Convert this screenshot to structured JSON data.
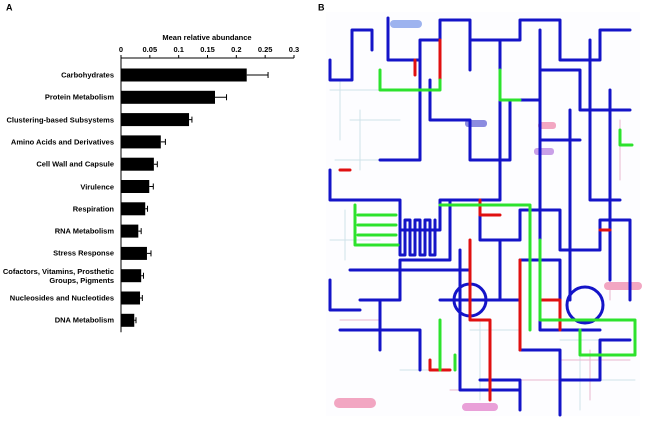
{
  "panels": {
    "a": "A",
    "b": "B"
  },
  "chart_data": {
    "type": "bar",
    "orientation": "horizontal",
    "x_label": "Mean relative abundance",
    "categories": [
      "Carbohydrates",
      "Protein Metabolism",
      "Clustering-based Subsystems",
      "Amino Acids and Derivatives",
      "Cell Wall and Capsule",
      "Virulence",
      "Respiration",
      "RNA Metabolism",
      "Stress Response",
      "Cofactors, Vitamins, Prosthetic Groups, Pigments",
      "Nucleosides and Nucleotides",
      "DNA Metabolism"
    ],
    "values": [
      0.218,
      0.163,
      0.118,
      0.069,
      0.057,
      0.049,
      0.042,
      0.03,
      0.045,
      0.035,
      0.033,
      0.023
    ],
    "errors": [
      0.037,
      0.02,
      0.005,
      0.008,
      0.006,
      0.007,
      0.004,
      0.005,
      0.007,
      0.004,
      0.004,
      0.003
    ],
    "color": "#000000",
    "xlim": [
      0,
      0.3
    ],
    "xticks": [
      0,
      0.05,
      0.1,
      0.15,
      0.2,
      0.25,
      0.3
    ]
  }
}
